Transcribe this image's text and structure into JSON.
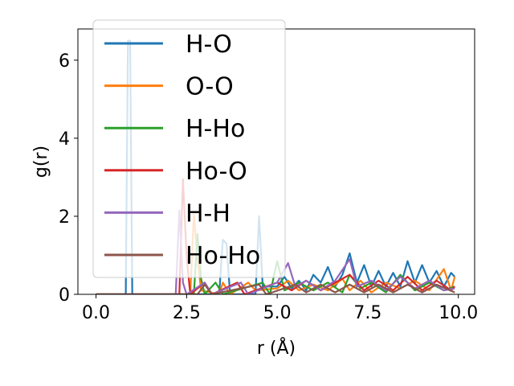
{
  "chart_data": {
    "type": "line",
    "xlabel": "r (Å)",
    "ylabel": "g(r)",
    "xlim": [
      -0.5,
      10.45
    ],
    "ylim": [
      0,
      6.8
    ],
    "xticks": [
      0.0,
      2.5,
      5.0,
      7.5,
      10.0
    ],
    "xtick_labels": [
      "0.0",
      "2.5",
      "5.0",
      "7.5",
      "10.0"
    ],
    "yticks": [
      0,
      2,
      4,
      6
    ],
    "ytick_labels": [
      "0",
      "2",
      "4",
      "6"
    ],
    "grid": false,
    "legend_position": "top-left",
    "series": [
      {
        "name": "H-O",
        "color": "#1f77b4",
        "points": [
          [
            0,
            0
          ],
          [
            0.8,
            0
          ],
          [
            0.82,
            0.0
          ],
          [
            0.88,
            6.5
          ],
          [
            0.94,
            6.5
          ],
          [
            1.0,
            0.0
          ],
          [
            1.02,
            0
          ],
          [
            3.4,
            0
          ],
          [
            3.5,
            1.4
          ],
          [
            3.6,
            1.3
          ],
          [
            3.7,
            0
          ],
          [
            4.4,
            0
          ],
          [
            4.5,
            2.0
          ],
          [
            4.6,
            0.2
          ],
          [
            5.0,
            0.2
          ],
          [
            5.2,
            0.45
          ],
          [
            5.4,
            0.15
          ],
          [
            5.6,
            0.35
          ],
          [
            5.8,
            0.1
          ],
          [
            6.0,
            0.5
          ],
          [
            6.2,
            0.3
          ],
          [
            6.4,
            0.7
          ],
          [
            6.6,
            0.2
          ],
          [
            6.8,
            0.5
          ],
          [
            7.0,
            1.05
          ],
          [
            7.2,
            0.3
          ],
          [
            7.4,
            0.75
          ],
          [
            7.6,
            0.2
          ],
          [
            7.8,
            0.6
          ],
          [
            8.0,
            0.2
          ],
          [
            8.2,
            0.55
          ],
          [
            8.4,
            0.2
          ],
          [
            8.6,
            0.85
          ],
          [
            8.8,
            0.3
          ],
          [
            9.0,
            0.75
          ],
          [
            9.2,
            0.3
          ],
          [
            9.4,
            0.6
          ],
          [
            9.6,
            0.2
          ],
          [
            9.8,
            0.55
          ],
          [
            9.9,
            0.45
          ]
        ]
      },
      {
        "name": "O-O",
        "color": "#ff7f0e",
        "points": [
          [
            0,
            0
          ],
          [
            2.6,
            0
          ],
          [
            2.7,
            2.05
          ],
          [
            2.8,
            0.9
          ],
          [
            2.9,
            0.1
          ],
          [
            3.4,
            0
          ],
          [
            3.5,
            0.3
          ],
          [
            3.7,
            0
          ],
          [
            4.2,
            0.3
          ],
          [
            4.4,
            0.1
          ],
          [
            5.0,
            0.15
          ],
          [
            5.3,
            0.35
          ],
          [
            5.6,
            0.1
          ],
          [
            6.0,
            0.25
          ],
          [
            6.4,
            0.1
          ],
          [
            6.8,
            0.4
          ],
          [
            7.0,
            0.1
          ],
          [
            7.3,
            0.35
          ],
          [
            7.6,
            0.05
          ],
          [
            8.0,
            0.3
          ],
          [
            8.4,
            0.15
          ],
          [
            8.8,
            0.35
          ],
          [
            9.2,
            0.1
          ],
          [
            9.6,
            0.65
          ],
          [
            9.8,
            0.1
          ],
          [
            9.9,
            0.45
          ]
        ]
      },
      {
        "name": "H-Ho",
        "color": "#2ca02c",
        "points": [
          [
            0,
            0
          ],
          [
            2.7,
            0
          ],
          [
            2.8,
            1.55
          ],
          [
            2.9,
            0.4
          ],
          [
            3.0,
            0
          ],
          [
            3.3,
            0.3
          ],
          [
            3.5,
            0
          ],
          [
            4.6,
            0.3
          ],
          [
            4.8,
            0.0
          ],
          [
            5.0,
            0.85
          ],
          [
            5.2,
            0.1
          ],
          [
            5.6,
            0.3
          ],
          [
            6.0,
            0.1
          ],
          [
            6.4,
            0.3
          ],
          [
            6.8,
            0.05
          ],
          [
            7.0,
            0.5
          ],
          [
            7.3,
            0.15
          ],
          [
            7.6,
            0.3
          ],
          [
            8.0,
            0.05
          ],
          [
            8.4,
            0.5
          ],
          [
            8.8,
            0.1
          ],
          [
            9.2,
            0.3
          ],
          [
            9.6,
            0.1
          ],
          [
            9.9,
            0.2
          ]
        ]
      },
      {
        "name": "Ho-O",
        "color": "#d62728",
        "points": [
          [
            0,
            0
          ],
          [
            2.3,
            0
          ],
          [
            2.4,
            2.95
          ],
          [
            2.5,
            1.0
          ],
          [
            2.6,
            0.0
          ],
          [
            3.0,
            0.3
          ],
          [
            3.2,
            0
          ],
          [
            3.9,
            0.3
          ],
          [
            4.1,
            0
          ],
          [
            5.0,
            0.3
          ],
          [
            5.4,
            0.1
          ],
          [
            5.8,
            0.35
          ],
          [
            6.2,
            0.1
          ],
          [
            6.6,
            0.3
          ],
          [
            7.0,
            0.5
          ],
          [
            7.4,
            0.1
          ],
          [
            7.8,
            0.35
          ],
          [
            8.2,
            0.1
          ],
          [
            8.6,
            0.45
          ],
          [
            9.0,
            0.1
          ],
          [
            9.4,
            0.35
          ],
          [
            9.8,
            0.1
          ],
          [
            9.9,
            0.2
          ]
        ]
      },
      {
        "name": "H-H",
        "color": "#9467bd",
        "points": [
          [
            0,
            0
          ],
          [
            2.2,
            0
          ],
          [
            2.3,
            2.15
          ],
          [
            2.4,
            0.3
          ],
          [
            2.5,
            0
          ],
          [
            3.0,
            0.3
          ],
          [
            3.2,
            0
          ],
          [
            4.0,
            0.3
          ],
          [
            4.2,
            0
          ],
          [
            5.0,
            0.3
          ],
          [
            5.3,
            0.8
          ],
          [
            5.5,
            0.2
          ],
          [
            5.8,
            0.35
          ],
          [
            6.2,
            0.1
          ],
          [
            6.6,
            0.35
          ],
          [
            7.0,
            0.9
          ],
          [
            7.2,
            0.2
          ],
          [
            7.6,
            0.35
          ],
          [
            8.0,
            0.1
          ],
          [
            8.4,
            0.45
          ],
          [
            8.8,
            0.15
          ],
          [
            9.2,
            0.35
          ],
          [
            9.6,
            0.1
          ],
          [
            9.9,
            0.15
          ]
        ]
      },
      {
        "name": "Ho-Ho",
        "color": "#8c564b",
        "points": [
          [
            0,
            0
          ],
          [
            2.8,
            0
          ],
          [
            3.0,
            0.25
          ],
          [
            3.2,
            0
          ],
          [
            4.5,
            0.25
          ],
          [
            4.7,
            0
          ],
          [
            5.5,
            0.25
          ],
          [
            5.8,
            0.05
          ],
          [
            6.2,
            0.25
          ],
          [
            6.6,
            0.05
          ],
          [
            7.0,
            0.25
          ],
          [
            7.4,
            0.05
          ],
          [
            7.8,
            0.25
          ],
          [
            8.2,
            0.05
          ],
          [
            8.6,
            0.25
          ],
          [
            9.0,
            0.05
          ],
          [
            9.4,
            0.25
          ],
          [
            9.9,
            0.05
          ]
        ]
      }
    ]
  }
}
